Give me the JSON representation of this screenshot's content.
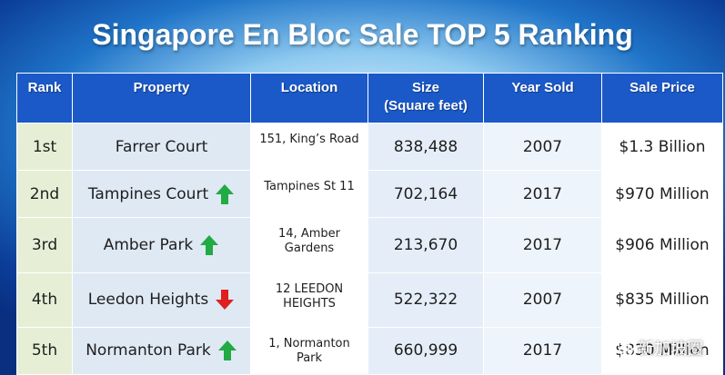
{
  "title": "Singapore En Bloc Sale TOP 5 Ranking",
  "headers": {
    "rank": "Rank",
    "property": "Property",
    "location": "Location",
    "size": "Size",
    "size_unit": "(Square feet)",
    "year_sold": "Year Sold",
    "sale_price": "Sale Price"
  },
  "rows": [
    {
      "rank": "1st",
      "property": "Farrer Court",
      "trend": "none",
      "location": "151, King’s Road",
      "size": "838,488",
      "year": "2007",
      "price": "$1.3 Billion"
    },
    {
      "rank": "2nd",
      "property": "Tampines Court",
      "trend": "up",
      "location": "Tampines St 11",
      "size": "702,164",
      "year": "2017",
      "price": "$970 Million"
    },
    {
      "rank": "3rd",
      "property": "Amber Park",
      "trend": "up",
      "location": "14, Amber Gardens",
      "size": "213,670",
      "year": "2017",
      "price": "$906 Million"
    },
    {
      "rank": "4th",
      "property": "Leedon Heights",
      "trend": "down",
      "location": "12 LEEDON HEIGHTS",
      "size": "522,322",
      "year": "2007",
      "price": "$835 Million"
    },
    {
      "rank": "5th",
      "property": "Normanton Park",
      "trend": "up",
      "location": "1, Normanton Park",
      "size": "660,999",
      "year": "2017",
      "price": "$830 Million"
    }
  ],
  "watermark": "新加坡圈",
  "colors": {
    "header_bg": "#1b59c8",
    "arrow_up": "#22aa44",
    "arrow_down": "#e02020"
  }
}
